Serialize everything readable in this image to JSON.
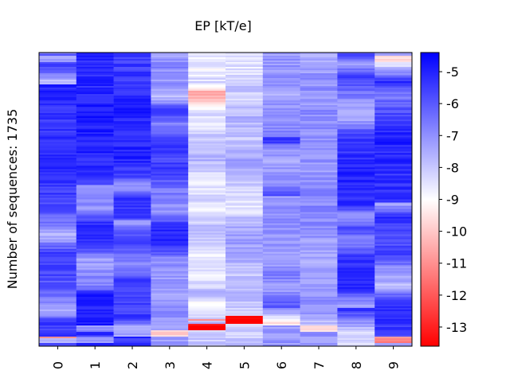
{
  "chart_data": {
    "type": "heatmap",
    "title": "EP [kT/e]",
    "ylabel": "Number of sequences: 1735",
    "xlabel": "",
    "x_categories": [
      "0",
      "1",
      "2",
      "3",
      "4",
      "5",
      "6",
      "7",
      "8",
      "9"
    ],
    "n_rows": 1735,
    "colorbar": {
      "colormap": "bwr_r",
      "range": [
        -13.6,
        -4.4
      ],
      "ticks": [
        "-5",
        "-6",
        "-7",
        "-8",
        "-9",
        "-10",
        "-11",
        "-12",
        "-13"
      ],
      "tick_values": [
        -5,
        -6,
        -7,
        -8,
        -9,
        -10,
        -11,
        -12,
        -13
      ]
    },
    "column_profiles": [
      [
        [
          0,
          -6.2
        ],
        [
          2,
          -7.3
        ],
        [
          4,
          -5.6
        ],
        [
          6,
          -6.0
        ],
        [
          10,
          -7.8
        ],
        [
          12,
          -5.0
        ],
        [
          20,
          -5.4
        ],
        [
          30,
          -5.3
        ],
        [
          40,
          -5.2
        ],
        [
          50,
          -5.6
        ],
        [
          58,
          -6.3
        ],
        [
          62,
          -7.8
        ],
        [
          68,
          -5.6
        ],
        [
          74,
          -5.5
        ],
        [
          82,
          -6.3
        ],
        [
          88,
          -7.6
        ],
        [
          92,
          -5.5
        ],
        [
          96,
          -5.5
        ],
        [
          97,
          -11.0
        ],
        [
          98,
          -7.5
        ],
        [
          100,
          -5.8
        ]
      ],
      [
        [
          0,
          -5.0
        ],
        [
          10,
          -5.1
        ],
        [
          20,
          -4.9
        ],
        [
          30,
          -5.0
        ],
        [
          38,
          -5.1
        ],
        [
          44,
          -5.6
        ],
        [
          46,
          -7.2
        ],
        [
          54,
          -7.0
        ],
        [
          58,
          -5.2
        ],
        [
          66,
          -5.3
        ],
        [
          70,
          -7.3
        ],
        [
          80,
          -6.6
        ],
        [
          82,
          -5.0
        ],
        [
          92,
          -4.9
        ],
        [
          94,
          -7.0
        ],
        [
          96,
          -5.2
        ],
        [
          98,
          -7.3
        ],
        [
          100,
          -5.2
        ]
      ],
      [
        [
          0,
          -5.6
        ],
        [
          8,
          -5.4
        ],
        [
          16,
          -5.0
        ],
        [
          28,
          -5.1
        ],
        [
          36,
          -5.0
        ],
        [
          42,
          -5.6
        ],
        [
          46,
          -7.5
        ],
        [
          50,
          -5.3
        ],
        [
          56,
          -5.5
        ],
        [
          58,
          -7.0
        ],
        [
          64,
          -5.4
        ],
        [
          72,
          -7.0
        ],
        [
          78,
          -5.4
        ],
        [
          88,
          -5.6
        ],
        [
          90,
          -5.2
        ],
        [
          94,
          -7.8
        ],
        [
          96,
          -7.5
        ],
        [
          98,
          -5.3
        ],
        [
          100,
          -5.4
        ]
      ],
      [
        [
          0,
          -7.6
        ],
        [
          4,
          -6.8
        ],
        [
          12,
          -7.2
        ],
        [
          16,
          -7.8
        ],
        [
          20,
          -5.0
        ],
        [
          24,
          -6.7
        ],
        [
          30,
          -5.5
        ],
        [
          36,
          -5.7
        ],
        [
          40,
          -5.2
        ],
        [
          46,
          -6.5
        ],
        [
          54,
          -7.0
        ],
        [
          60,
          -5.1
        ],
        [
          66,
          -5.2
        ],
        [
          70,
          -6.8
        ],
        [
          80,
          -7.3
        ],
        [
          88,
          -6.8
        ],
        [
          94,
          -7.5
        ],
        [
          95,
          -10.0
        ],
        [
          98,
          -7.3
        ],
        [
          100,
          -7.3
        ]
      ],
      [
        [
          0,
          -8.8
        ],
        [
          4,
          -8.5
        ],
        [
          6,
          -8.7
        ],
        [
          10,
          -8.3
        ],
        [
          14,
          -10.8
        ],
        [
          20,
          -8.3
        ],
        [
          24,
          -8.5
        ],
        [
          32,
          -7.8
        ],
        [
          36,
          -7.5
        ],
        [
          40,
          -8.2
        ],
        [
          46,
          -8.6
        ],
        [
          50,
          -8.3
        ],
        [
          54,
          -8.7
        ],
        [
          58,
          -8.0
        ],
        [
          64,
          -7.8
        ],
        [
          70,
          -8.7
        ],
        [
          76,
          -8.5
        ],
        [
          82,
          -7.8
        ],
        [
          86,
          -9.0
        ],
        [
          90,
          -8.3
        ],
        [
          91,
          -10.6
        ],
        [
          92,
          -7.6
        ],
        [
          93,
          -13.6
        ],
        [
          96,
          -8.0
        ],
        [
          100,
          -8.0
        ]
      ],
      [
        [
          0,
          -8.3
        ],
        [
          6,
          -8.5
        ],
        [
          12,
          -8.0
        ],
        [
          16,
          -8.2
        ],
        [
          22,
          -7.6
        ],
        [
          30,
          -8.0
        ],
        [
          36,
          -7.3
        ],
        [
          44,
          -8.0
        ],
        [
          50,
          -8.5
        ],
        [
          54,
          -8.4
        ],
        [
          58,
          -7.6
        ],
        [
          64,
          -7.2
        ],
        [
          70,
          -7.5
        ],
        [
          76,
          -8.0
        ],
        [
          84,
          -7.8
        ],
        [
          88,
          -8.2
        ],
        [
          91,
          -13.6
        ],
        [
          94,
          -8.1
        ],
        [
          100,
          -8.0
        ]
      ],
      [
        [
          0,
          -7.3
        ],
        [
          8,
          -7.0
        ],
        [
          14,
          -7.4
        ],
        [
          20,
          -7.0
        ],
        [
          28,
          -6.8
        ],
        [
          30,
          -5.2
        ],
        [
          32,
          -6.8
        ],
        [
          36,
          -7.4
        ],
        [
          44,
          -7.1
        ],
        [
          48,
          -6.0
        ],
        [
          50,
          -7.2
        ],
        [
          56,
          -7.0
        ],
        [
          64,
          -7.0
        ],
        [
          72,
          -7.3
        ],
        [
          76,
          -6.6
        ],
        [
          80,
          -7.4
        ],
        [
          86,
          -6.0
        ],
        [
          88,
          -7.1
        ],
        [
          92,
          -9.6
        ],
        [
          94,
          -7.3
        ],
        [
          100,
          -7.0
        ]
      ],
      [
        [
          0,
          -7.4
        ],
        [
          10,
          -7.0
        ],
        [
          16,
          -7.2
        ],
        [
          20,
          -6.9
        ],
        [
          30,
          -7.0
        ],
        [
          40,
          -7.2
        ],
        [
          50,
          -6.8
        ],
        [
          60,
          -7.0
        ],
        [
          70,
          -7.4
        ],
        [
          80,
          -7.1
        ],
        [
          88,
          -7.0
        ],
        [
          92,
          -7.8
        ],
        [
          94,
          -9.5
        ],
        [
          96,
          -7.0
        ],
        [
          100,
          -7.4
        ]
      ],
      [
        [
          0,
          -5.4
        ],
        [
          4,
          -7.6
        ],
        [
          8,
          -5.2
        ],
        [
          16,
          -7.0
        ],
        [
          22,
          -7.6
        ],
        [
          28,
          -5.5
        ],
        [
          36,
          -5.3
        ],
        [
          44,
          -5.0
        ],
        [
          52,
          -5.2
        ],
        [
          56,
          -7.3
        ],
        [
          60,
          -5.6
        ],
        [
          64,
          -7.0
        ],
        [
          70,
          -5.4
        ],
        [
          80,
          -5.0
        ],
        [
          86,
          -7.5
        ],
        [
          88,
          -5.5
        ],
        [
          94,
          -7.8
        ],
        [
          96,
          -8.3
        ],
        [
          100,
          -8.5
        ]
      ],
      [
        [
          0,
          -7.6
        ],
        [
          2,
          -9.8
        ],
        [
          6,
          -7.5
        ],
        [
          10,
          -5.2
        ],
        [
          14,
          -6.7
        ],
        [
          22,
          -5.5
        ],
        [
          30,
          -5.0
        ],
        [
          40,
          -5.3
        ],
        [
          50,
          -5.2
        ],
        [
          52,
          -7.3
        ],
        [
          56,
          -5.0
        ],
        [
          62,
          -6.0
        ],
        [
          70,
          -5.5
        ],
        [
          74,
          -7.2
        ],
        [
          80,
          -7.8
        ],
        [
          84,
          -5.3
        ],
        [
          90,
          -5.2
        ],
        [
          96,
          -5.5
        ],
        [
          98,
          -11.2
        ],
        [
          100,
          -7.6
        ]
      ]
    ]
  }
}
